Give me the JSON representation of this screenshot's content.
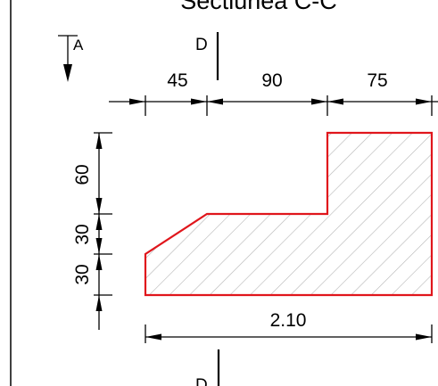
{
  "title": "Sectiunea C-C",
  "section_marks": {
    "upper": "D",
    "lower": "D"
  },
  "view_arrow": "A",
  "dimensions": {
    "top_segments": [
      "45",
      "90",
      "75"
    ],
    "left_segments": [
      "60",
      "30",
      "30"
    ],
    "bottom_total": "2.10"
  },
  "colors": {
    "outline": "#e0161c",
    "hatch": "#b5b5b5",
    "lines": "#000000"
  }
}
